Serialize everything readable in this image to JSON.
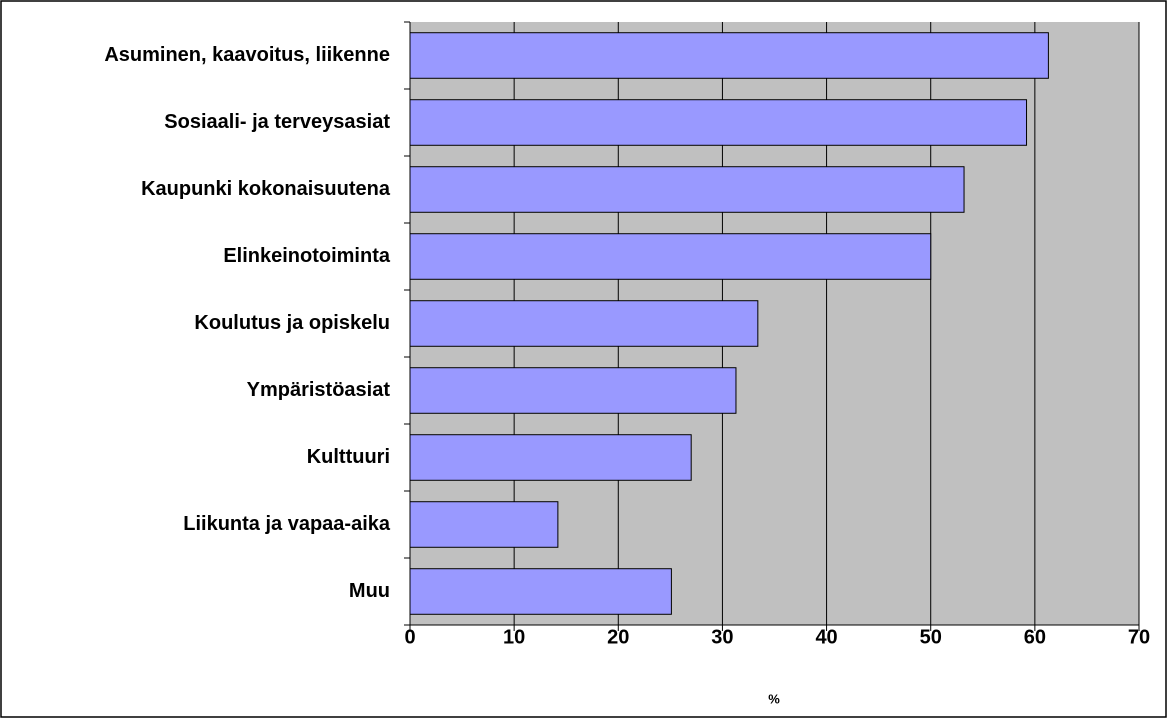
{
  "chart_data": {
    "type": "bar",
    "orientation": "horizontal",
    "categories": [
      "Asuminen, kaavoitus, liikenne",
      "Sosiaali- ja terveysasiat",
      "Kaupunki kokonaisuutena",
      "Elinkeinotoiminta",
      "Koulutus ja opiskelu",
      "Ympäristöasiat",
      "Kulttuuri",
      "Liikunta ja vapaa-aika",
      "Muu"
    ],
    "values": [
      61.3,
      59.2,
      53.2,
      50.0,
      33.4,
      31.3,
      27.0,
      14.2,
      25.1
    ],
    "color": "#9999ff",
    "xlabel": "%",
    "xlim": [
      0,
      70
    ],
    "xticks": [
      0,
      10,
      20,
      30,
      40,
      50,
      60,
      70
    ],
    "grid": true
  }
}
